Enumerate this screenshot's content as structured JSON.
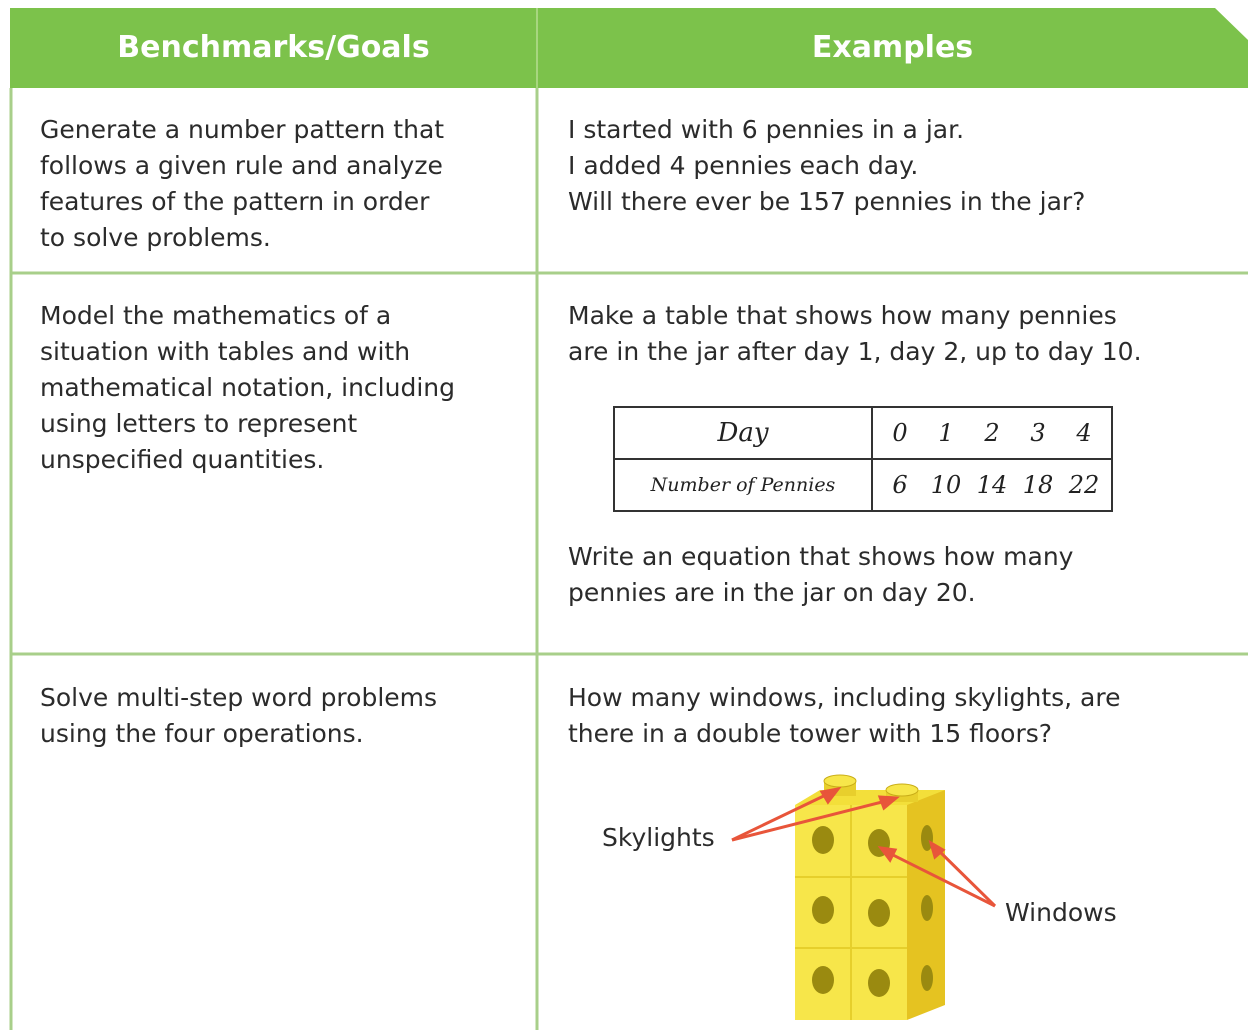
{
  "header": {
    "columns": [
      "Benchmarks/Goals",
      "Examples"
    ]
  },
  "rows": [
    {
      "goal": [
        "Generate a number pattern that",
        "follows a given rule and analyze",
        "features of the pattern in order",
        "to solve problems."
      ],
      "example": [
        "I started with 6 pennies in a jar.",
        "I added 4 pennies each day.",
        "Will there ever be 157 pennies in the jar?"
      ]
    },
    {
      "goal": [
        "Model the mathematics of a",
        "situation with tables and with",
        "mathematical notation, including",
        "using letters to represent",
        "unspecified quantities."
      ],
      "example": [
        "Make a table that shows how many pennies",
        "are in the jar after day 1, day 2, up to day 10."
      ],
      "table": {
        "rows": [
          {
            "label": "Day",
            "values": [
              0,
              1,
              2,
              3,
              4
            ]
          },
          {
            "label": "Number of Pennies",
            "values": [
              6,
              10,
              14,
              18,
              22
            ]
          }
        ]
      },
      "example_after": [
        "Write an equation that shows how many",
        "pennies are in the jar on day 20."
      ]
    },
    {
      "goal": [
        "Solve multi-step word problems",
        "using the four operations."
      ],
      "example": [
        "How many windows, including skylights, are",
        "there in a double tower with 15 floors?"
      ],
      "figure_labels": [
        "Skylights",
        "Windows"
      ]
    }
  ]
}
